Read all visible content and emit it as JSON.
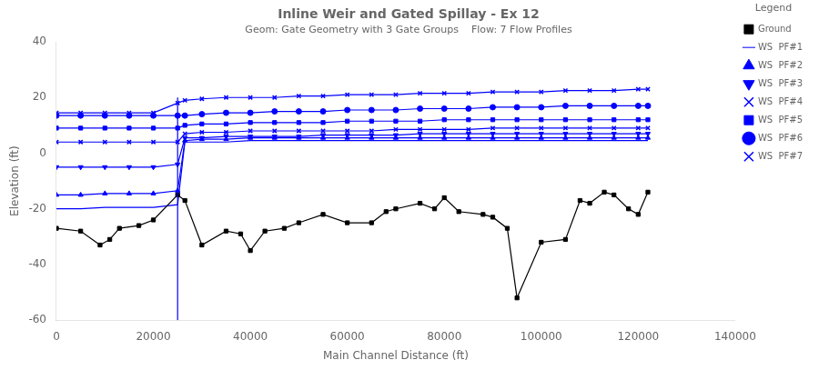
{
  "chart_data": {
    "type": "line",
    "title": "Inline Weir and Gated Spillay - Ex 12",
    "subtitle": "Geom: Gate Geometry with 3 Gate Groups    Flow: 7 Flow Profiles",
    "x_label": "Main Channel Distance (ft)",
    "y_label": "Elevation (ft)",
    "xlim": [
      0,
      140000
    ],
    "ylim": [
      -60,
      40
    ],
    "xticks": [
      0,
      20000,
      40000,
      60000,
      80000,
      100000,
      120000,
      140000
    ],
    "yticks": [
      -60,
      -40,
      -20,
      0,
      20,
      40
    ],
    "grid": false,
    "legend": "right",
    "legend_title": "Legend",
    "series": [
      {
        "name": "WS  PF#7",
        "color": "#0000FF",
        "marker": "x",
        "x": [
          0,
          5000,
          10000,
          15000,
          20000,
          25000,
          26500,
          30000,
          35000,
          40000,
          45000,
          50000,
          55000,
          60000,
          65000,
          70000,
          75000,
          80000,
          85000,
          90000,
          95000,
          100000,
          105000,
          110000,
          115000,
          120000,
          122000
        ],
        "values": [
          14.5,
          14.5,
          14.5,
          14.5,
          14.5,
          18.0,
          19.0,
          19.5,
          20.0,
          20.0,
          20.0,
          20.5,
          20.5,
          21.0,
          21.0,
          21.0,
          21.5,
          21.5,
          21.5,
          22.0,
          22.0,
          22.0,
          22.5,
          22.5,
          22.5,
          23.0,
          23.0
        ]
      },
      {
        "name": "WS  PF#6",
        "color": "#0000FF",
        "marker": "circle",
        "x": [
          0,
          5000,
          10000,
          15000,
          20000,
          25000,
          26500,
          30000,
          35000,
          40000,
          45000,
          50000,
          55000,
          60000,
          65000,
          70000,
          75000,
          80000,
          85000,
          90000,
          95000,
          100000,
          105000,
          110000,
          115000,
          120000,
          122000
        ],
        "values": [
          13.5,
          13.5,
          13.5,
          13.5,
          13.5,
          13.5,
          13.5,
          14.0,
          14.5,
          14.5,
          15.0,
          15.0,
          15.0,
          15.5,
          15.5,
          15.5,
          16.0,
          16.0,
          16.0,
          16.5,
          16.5,
          16.5,
          17.0,
          17.0,
          17.0,
          17.0,
          17.0
        ]
      },
      {
        "name": "WS  PF#5",
        "color": "#0000FF",
        "marker": "square",
        "x": [
          0,
          5000,
          10000,
          15000,
          20000,
          25000,
          26500,
          30000,
          35000,
          40000,
          45000,
          50000,
          55000,
          60000,
          65000,
          70000,
          75000,
          80000,
          85000,
          90000,
          95000,
          100000,
          105000,
          110000,
          115000,
          120000,
          122000
        ],
        "values": [
          9.0,
          9.0,
          9.0,
          9.0,
          9.0,
          9.0,
          10.0,
          10.5,
          10.5,
          11.0,
          11.0,
          11.0,
          11.0,
          11.5,
          11.5,
          11.5,
          11.5,
          12.0,
          12.0,
          12.0,
          12.0,
          12.0,
          12.0,
          12.0,
          12.0,
          12.0,
          12.0
        ]
      },
      {
        "name": "WS  PF#4",
        "color": "#0000FF",
        "marker": "x",
        "x": [
          0,
          5000,
          10000,
          15000,
          20000,
          25000,
          26500,
          30000,
          35000,
          40000,
          45000,
          50000,
          55000,
          60000,
          65000,
          70000,
          75000,
          80000,
          85000,
          90000,
          95000,
          100000,
          105000,
          110000,
          115000,
          120000,
          122000
        ],
        "values": [
          4.0,
          4.0,
          4.0,
          4.0,
          4.0,
          4.0,
          7.0,
          7.5,
          7.5,
          8.0,
          8.0,
          8.0,
          8.0,
          8.0,
          8.0,
          8.5,
          8.5,
          8.5,
          8.5,
          9.0,
          9.0,
          9.0,
          9.0,
          9.0,
          9.0,
          9.0,
          9.0
        ]
      },
      {
        "name": "WS  PF#3",
        "color": "#0000FF",
        "marker": "triangle-down",
        "x": [
          0,
          5000,
          10000,
          15000,
          20000,
          25000,
          26500,
          30000,
          35000,
          40000,
          45000,
          50000,
          55000,
          60000,
          65000,
          70000,
          75000,
          80000,
          85000,
          90000,
          95000,
          100000,
          105000,
          110000,
          115000,
          120000,
          122000
        ],
        "values": [
          -5.0,
          -5.0,
          -5.0,
          -5.0,
          -5.0,
          -4.0,
          5.5,
          5.5,
          6.0,
          6.0,
          6.0,
          6.0,
          6.5,
          6.5,
          6.5,
          6.5,
          7.0,
          7.0,
          7.0,
          7.0,
          7.0,
          7.0,
          7.0,
          7.0,
          7.0,
          7.0,
          7.0
        ]
      },
      {
        "name": "WS  PF#2",
        "color": "#0000FF",
        "marker": "triangle-up",
        "x": [
          0,
          5000,
          10000,
          15000,
          20000,
          25000,
          26500,
          30000,
          35000,
          40000,
          45000,
          50000,
          55000,
          60000,
          65000,
          70000,
          75000,
          80000,
          85000,
          90000,
          95000,
          100000,
          105000,
          110000,
          115000,
          120000,
          122000
        ],
        "values": [
          -15.0,
          -15.0,
          -14.5,
          -14.5,
          -14.5,
          -13.5,
          4.5,
          5.0,
          5.0,
          5.5,
          5.5,
          5.5,
          5.5,
          5.5,
          5.5,
          5.5,
          5.5,
          5.5,
          5.5,
          5.5,
          5.5,
          5.5,
          5.5,
          5.5,
          5.5,
          5.5,
          5.5
        ]
      },
      {
        "name": "WS  PF#1",
        "color": "#0000FF",
        "marker": "none",
        "x": [
          0,
          5000,
          10000,
          15000,
          20000,
          25000,
          26500,
          30000,
          35000,
          40000,
          45000,
          50000,
          55000,
          60000,
          65000,
          70000,
          75000,
          80000,
          85000,
          90000,
          95000,
          100000,
          105000,
          110000,
          115000,
          120000,
          122000
        ],
        "values": [
          -20.0,
          -20.0,
          -19.5,
          -19.5,
          -19.5,
          -18.5,
          4.0,
          4.0,
          4.0,
          4.5,
          4.5,
          4.5,
          4.5,
          4.5,
          4.5,
          4.5,
          4.5,
          4.5,
          4.5,
          4.5,
          4.5,
          4.5,
          4.5,
          4.5,
          4.5,
          4.5,
          4.5
        ]
      },
      {
        "name": "Ground",
        "color": "#000000",
        "marker": "square",
        "x": [
          0,
          5000,
          9000,
          11000,
          13000,
          17000,
          20000,
          25000,
          26500,
          30000,
          35000,
          38000,
          40000,
          43000,
          47000,
          50000,
          55000,
          60000,
          65000,
          68000,
          70000,
          75000,
          78000,
          80000,
          83000,
          88000,
          90000,
          93000,
          95000,
          100000,
          105000,
          108000,
          110000,
          113000,
          115000,
          118000,
          120000,
          122000
        ],
        "values": [
          -27,
          -28,
          -33,
          -31,
          -27,
          -26,
          -24,
          -15,
          -17,
          -33,
          -28,
          -29,
          -35,
          -28,
          -27,
          -25,
          -22,
          -25,
          -25,
          -21,
          -20,
          -18,
          -20,
          -16,
          -21,
          -22,
          -23,
          -27,
          -52,
          -32,
          -31,
          -17,
          -18,
          -14,
          -15,
          -20,
          -22,
          -14
        ]
      },
      {
        "color": "#0000FF",
        "marker": "none",
        "x": [
          25000,
          25000
        ],
        "values": [
          -60,
          20
        ]
      }
    ]
  }
}
